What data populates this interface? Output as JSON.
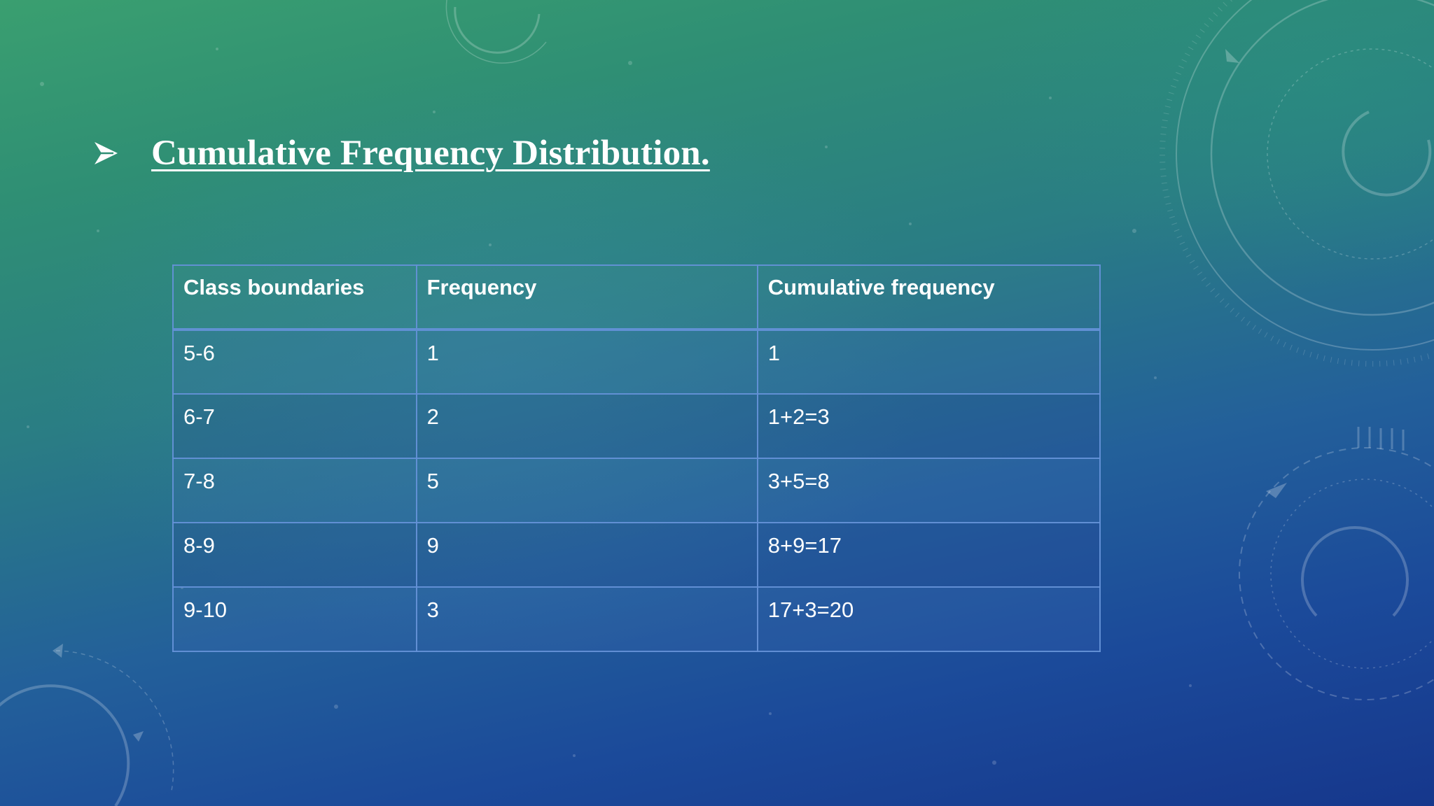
{
  "slide": {
    "bullet_icon": "arrowhead-bullet-icon",
    "title": "Cumulative Frequency Distribution."
  },
  "table": {
    "headers": [
      "Class boundaries",
      "Frequency",
      "Cumulative frequency"
    ],
    "rows": [
      [
        "5-6",
        "1",
        "1"
      ],
      [
        "6-7",
        "2",
        "1+2=3"
      ],
      [
        "7-8",
        "5",
        "3+5=8"
      ],
      [
        "8-9",
        "9",
        "8+9=17"
      ],
      [
        "9-10",
        "3",
        "17+3=20"
      ]
    ]
  },
  "colors": {
    "text": "#ffffff",
    "table_border": "#6491d7",
    "background_top": "#3a9f70",
    "background_bottom": "#16378c"
  }
}
